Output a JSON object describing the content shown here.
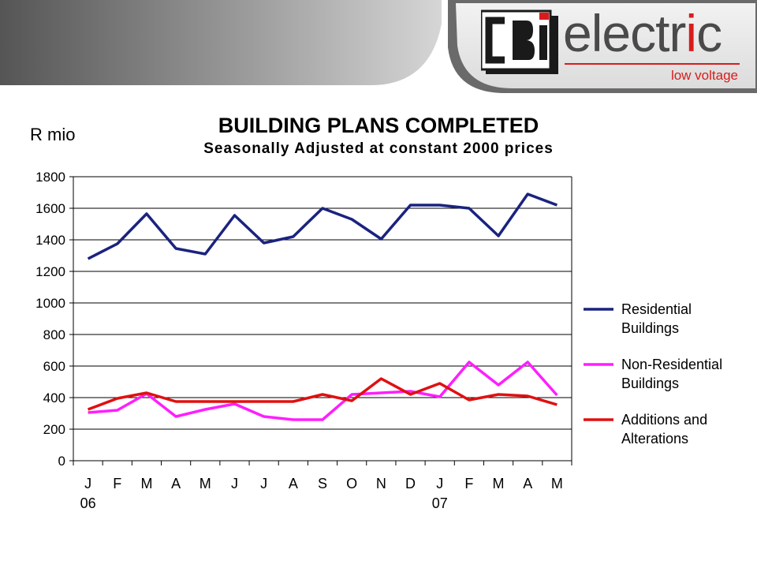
{
  "banner": {
    "logo_mark": "CBi",
    "logo_word_start": "electr",
    "logo_word_accent": "i",
    "logo_word_end": "c",
    "logo_tagline": "low voltage"
  },
  "chart_data": {
    "type": "line",
    "title": "BUILDING PLANS COMPLETED",
    "subtitle": "Seasonally Adjusted at constant 2000 prices",
    "ylabel": "R mio",
    "xlabel": "",
    "ylim": [
      0,
      1800
    ],
    "yticks": [
      0,
      200,
      400,
      600,
      800,
      1000,
      1200,
      1400,
      1600,
      1800
    ],
    "grid": true,
    "legend_position": "right",
    "categories": [
      "J",
      "F",
      "M",
      "A",
      "M",
      "J",
      "J",
      "A",
      "S",
      "O",
      "N",
      "D",
      "J",
      "F",
      "M",
      "A",
      "M"
    ],
    "year_labels": [
      {
        "index": 0,
        "label": "06"
      },
      {
        "index": 12,
        "label": "07"
      }
    ],
    "series": [
      {
        "name": "Residential Buildings",
        "legend_lines": [
          "Residential",
          "Buildings"
        ],
        "color": "#1a237e",
        "values": [
          1280,
          1375,
          1565,
          1345,
          1310,
          1555,
          1380,
          1420,
          1600,
          1530,
          1405,
          1620,
          1620,
          1600,
          1425,
          1690,
          1620
        ]
      },
      {
        "name": "Non-Residential Buildings",
        "legend_lines": [
          "Non-Residential",
          "Buildings"
        ],
        "color": "#ff1eff",
        "values": [
          305,
          320,
          425,
          280,
          325,
          360,
          280,
          260,
          260,
          420,
          430,
          440,
          405,
          625,
          480,
          625,
          415
        ]
      },
      {
        "name": "Additions and Alterations",
        "legend_lines": [
          "Additions and",
          "Alterations"
        ],
        "color": "#e01010",
        "values": [
          325,
          395,
          430,
          375,
          375,
          375,
          375,
          375,
          420,
          380,
          520,
          420,
          490,
          385,
          420,
          410,
          355
        ]
      }
    ]
  }
}
